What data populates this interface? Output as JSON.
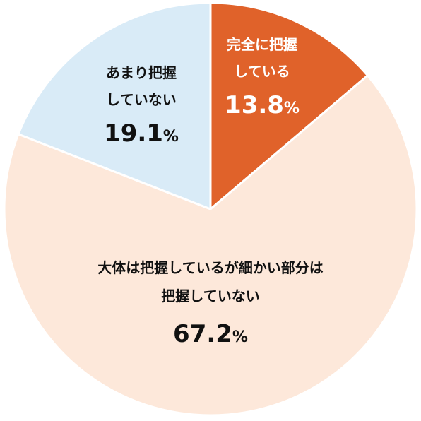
{
  "chart_data": {
    "type": "pie",
    "start_angle_deg": 0,
    "direction": "clockwise",
    "slices": [
      {
        "label_lines": [
          "完全に把握",
          "している"
        ],
        "value": 13.8,
        "value_text": "13.8",
        "unit": "%",
        "color": "#e0622a",
        "text_color": "#ffffff"
      },
      {
        "label_lines": [
          "大体は把握しているが細かい部分は",
          "把握していない"
        ],
        "value": 67.2,
        "value_text": "67.2",
        "unit": "%",
        "color": "#fde8da",
        "text_color": "#111111"
      },
      {
        "label_lines": [
          "あまり把握",
          "していない"
        ],
        "value": 19.1,
        "value_text": "19.1",
        "unit": "%",
        "color": "#d9ebf7",
        "text_color": "#111111"
      }
    ]
  }
}
